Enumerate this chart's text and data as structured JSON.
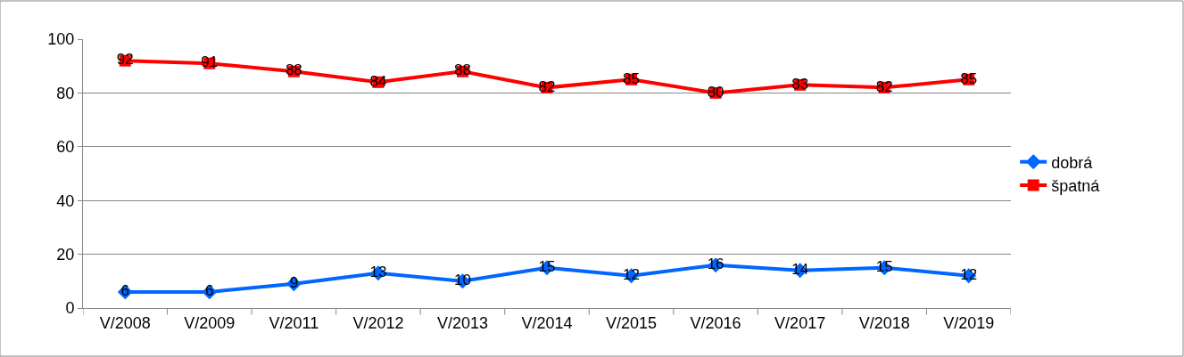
{
  "chart_data": {
    "type": "line",
    "categories": [
      "V/2008",
      "V/2009",
      "V/2011",
      "V/2012",
      "V/2013",
      "V/2014",
      "V/2015",
      "V/2016",
      "V/2017",
      "V/2018",
      "V/2019"
    ],
    "series": [
      {
        "name": "dobrá",
        "color": "#0066ff",
        "marker": "diamond",
        "values": [
          6,
          6,
          9,
          13,
          10,
          15,
          12,
          16,
          14,
          15,
          12
        ]
      },
      {
        "name": "špatná",
        "color": "#ff0000",
        "marker": "square",
        "values": [
          92,
          91,
          88,
          84,
          88,
          82,
          85,
          80,
          83,
          82,
          85
        ]
      }
    ],
    "ylim": [
      0,
      100
    ],
    "yticks": [
      0,
      20,
      40,
      60,
      80,
      100
    ],
    "grid": "y",
    "legend": "right",
    "data_labels": true
  }
}
